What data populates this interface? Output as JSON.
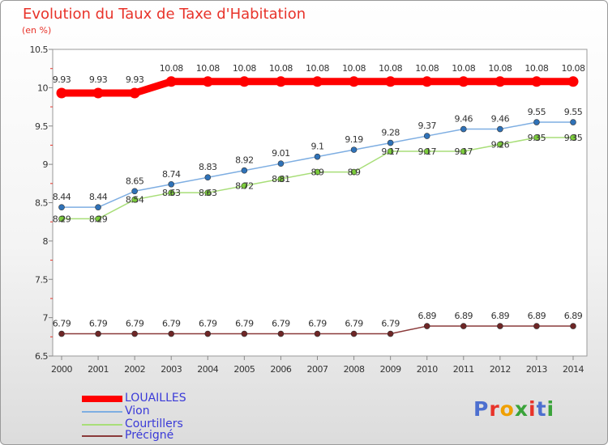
{
  "title": "Evolution du Taux de Taxe d'Habitation",
  "unit": "(en %)",
  "brand": {
    "text": "Proxiti",
    "letter_colors": [
      "#4d6fcf",
      "#e8332a",
      "#f0a000",
      "#3aa33a",
      "#e8332a",
      "#4d6fcf",
      "#3aa33a"
    ]
  },
  "chart_data": {
    "type": "line",
    "x": [
      "2000",
      "2001",
      "2002",
      "2003",
      "2004",
      "2005",
      "2006",
      "2007",
      "2008",
      "2009",
      "2010",
      "2011",
      "2012",
      "2013",
      "2014"
    ],
    "ylim": [
      6.5,
      10.5
    ],
    "yticks": [
      "6.5",
      "7",
      "7.5",
      "8",
      "8.5",
      "9",
      "9.5",
      "10",
      "10.5"
    ],
    "grid": false,
    "legend_position": "bottom-left",
    "series": [
      {
        "name": "LOUAILLES",
        "color": "#ff0000",
        "values": [
          9.93,
          9.93,
          9.93,
          10.08,
          10.08,
          10.08,
          10.08,
          10.08,
          10.08,
          10.08,
          10.08,
          10.08,
          10.08,
          10.08,
          10.08
        ],
        "labels": [
          "9.93",
          "9.93",
          "9.93",
          "10.08",
          "10.08",
          "10.08",
          "10.08",
          "10.08",
          "10.08",
          "10.08",
          "10.08",
          "10.08",
          "10.08",
          "10.08",
          "10.08"
        ]
      },
      {
        "name": "Vion",
        "color": "#7eaee2",
        "marker_color": "#2f72b8",
        "values": [
          8.44,
          8.44,
          8.65,
          8.74,
          8.83,
          8.92,
          9.01,
          9.1,
          9.19,
          9.28,
          9.37,
          9.46,
          9.46,
          9.55,
          9.55
        ],
        "labels": [
          "8.44",
          "8.44",
          "8.65",
          "8.74",
          "8.83",
          "8.92",
          "9.01",
          "9.1",
          "9.19",
          "9.28",
          "9.37",
          "9.46",
          "9.46",
          "9.55",
          "9.55"
        ]
      },
      {
        "name": "Courtillers",
        "color": "#a8de78",
        "marker_color": "#7ccc3c",
        "values": [
          8.29,
          8.29,
          8.54,
          8.63,
          8.63,
          8.72,
          8.81,
          8.9,
          8.9,
          9.17,
          9.17,
          9.17,
          9.26,
          9.35,
          9.35
        ],
        "labels": [
          "8.29",
          "8.29",
          "8.54",
          "8.63",
          "8.63",
          "8.72",
          "8.81",
          "8.9",
          "8.9",
          "9.17",
          "9.17",
          "9.17",
          "9.26",
          "9.35",
          "9.35"
        ]
      },
      {
        "name": "Précigné",
        "color": "#8a3a3a",
        "marker_color": "#6e2626",
        "values": [
          6.79,
          6.79,
          6.79,
          6.79,
          6.79,
          6.79,
          6.79,
          6.79,
          6.79,
          6.79,
          6.89,
          6.89,
          6.89,
          6.89,
          6.89
        ],
        "labels": [
          "6.79",
          "6.79",
          "6.79",
          "6.79",
          "6.79",
          "6.79",
          "6.79",
          "6.79",
          "6.79",
          "6.79",
          "6.89",
          "6.89",
          "6.89",
          "6.89",
          "6.89"
        ]
      }
    ]
  }
}
